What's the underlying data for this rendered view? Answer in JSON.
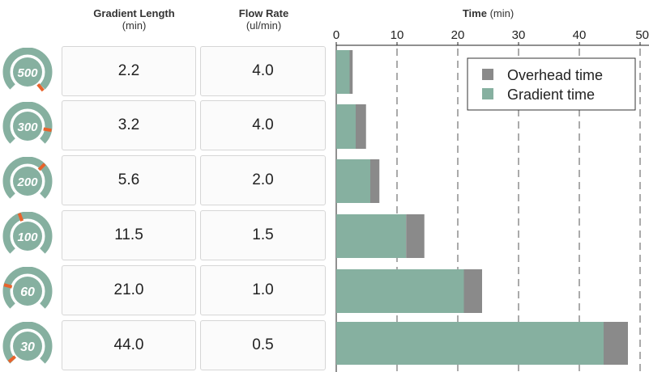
{
  "headers": {
    "gradient_length": "Gradient Length",
    "gradient_length_unit": "(min)",
    "flow_rate": "Flow Rate",
    "flow_rate_unit": "(ul/min)",
    "time": "Time",
    "time_unit": "(min)"
  },
  "rows": [
    {
      "gauge_label": "500",
      "gradient_length": "2.2",
      "flow_rate": "4.0"
    },
    {
      "gauge_label": "300",
      "gradient_length": "3.2",
      "flow_rate": "4.0"
    },
    {
      "gauge_label": "200",
      "gradient_length": "5.6",
      "flow_rate": "2.0"
    },
    {
      "gauge_label": "100",
      "gradient_length": "11.5",
      "flow_rate": "1.5"
    },
    {
      "gauge_label": "60",
      "gradient_length": "21.0",
      "flow_rate": "1.0"
    },
    {
      "gauge_label": "30",
      "gradient_length": "44.0",
      "flow_rate": "0.5"
    }
  ],
  "colors": {
    "gradient": "#86b0a0",
    "overhead": "#8a8a8a",
    "gauge_ring": "#86b0a0",
    "gauge_needle": "#e8632b"
  },
  "chart_data": {
    "type": "bar",
    "orientation": "horizontal",
    "stacked": true,
    "x_ticks": [
      0,
      10,
      20,
      30,
      40,
      50
    ],
    "xlim": [
      0,
      50
    ],
    "grid": "vertical dashed",
    "legend_position": "top-right",
    "series": [
      {
        "name": "Gradient time",
        "color": "#86b0a0",
        "values": [
          2.2,
          3.2,
          5.6,
          11.5,
          21.0,
          44.0
        ]
      },
      {
        "name": "Overhead time",
        "color": "#8a8a8a",
        "values": [
          0.5,
          1.7,
          1.5,
          3.0,
          3.0,
          4.0
        ]
      }
    ],
    "legend": [
      "Overhead time",
      "Gradient time"
    ]
  }
}
